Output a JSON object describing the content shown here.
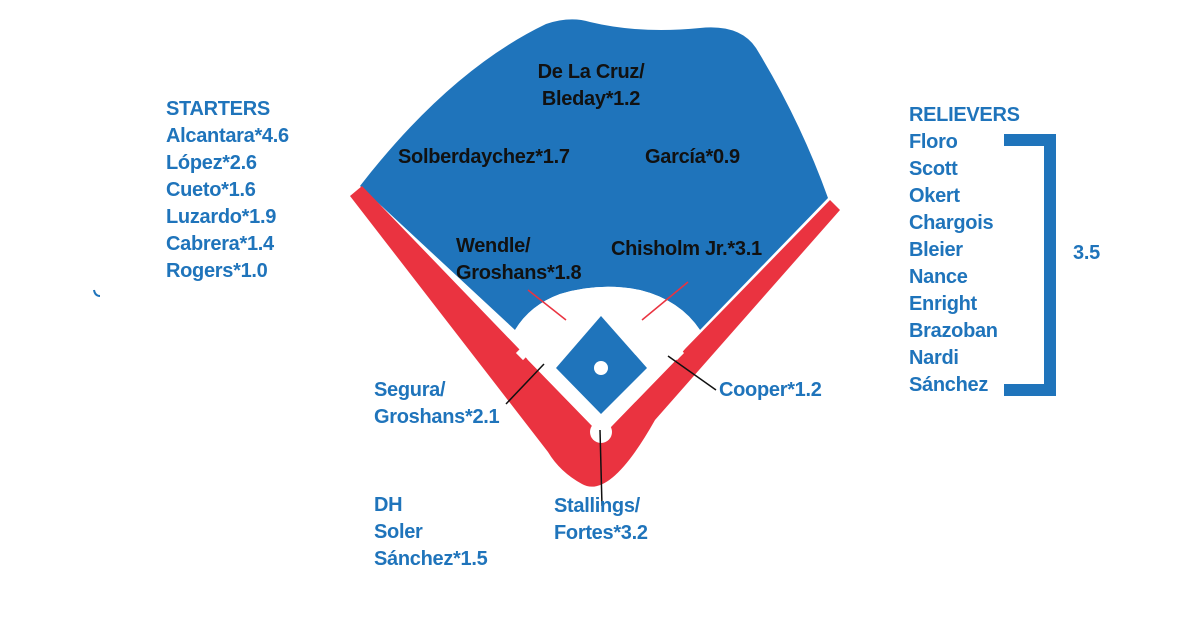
{
  "colors": {
    "field_blue": "#1f74bb",
    "foul_red": "#ea3340",
    "label_blue": "#1f74bb",
    "label_black": "#111111"
  },
  "starters": {
    "heading": "STARTERS",
    "items": [
      "Alcantara*4.6",
      "López*2.6",
      "Cueto*1.6",
      "Luzardo*1.9",
      "Cabrera*1.4",
      "Rogers*1.0"
    ]
  },
  "relievers": {
    "heading": "RELIEVERS",
    "items": [
      "Floro",
      "Scott",
      "Okert",
      "Chargois",
      "Bleier",
      "Nance",
      "Enright",
      "Brazoban",
      "Nardi",
      "Sánchez"
    ],
    "group_value": "3.5"
  },
  "dh": {
    "heading": "DH",
    "items": [
      "Soler",
      "Sánchez*1.5"
    ]
  },
  "positions": {
    "center_field": [
      "De La Cruz/",
      "Bleday*1.2"
    ],
    "left_field": [
      "Solberdaychez*1.7"
    ],
    "right_field": [
      "García*0.9"
    ],
    "second_base": [
      "Wendle/",
      "Groshans*1.8"
    ],
    "shortstop": [
      "Chisholm Jr.*3.1"
    ],
    "third_base": [
      "Segura/",
      "Groshans*2.1"
    ],
    "first_base": [
      "Cooper*1.2"
    ],
    "catcher": [
      "Stallings/",
      "Fortes*3.2"
    ]
  }
}
